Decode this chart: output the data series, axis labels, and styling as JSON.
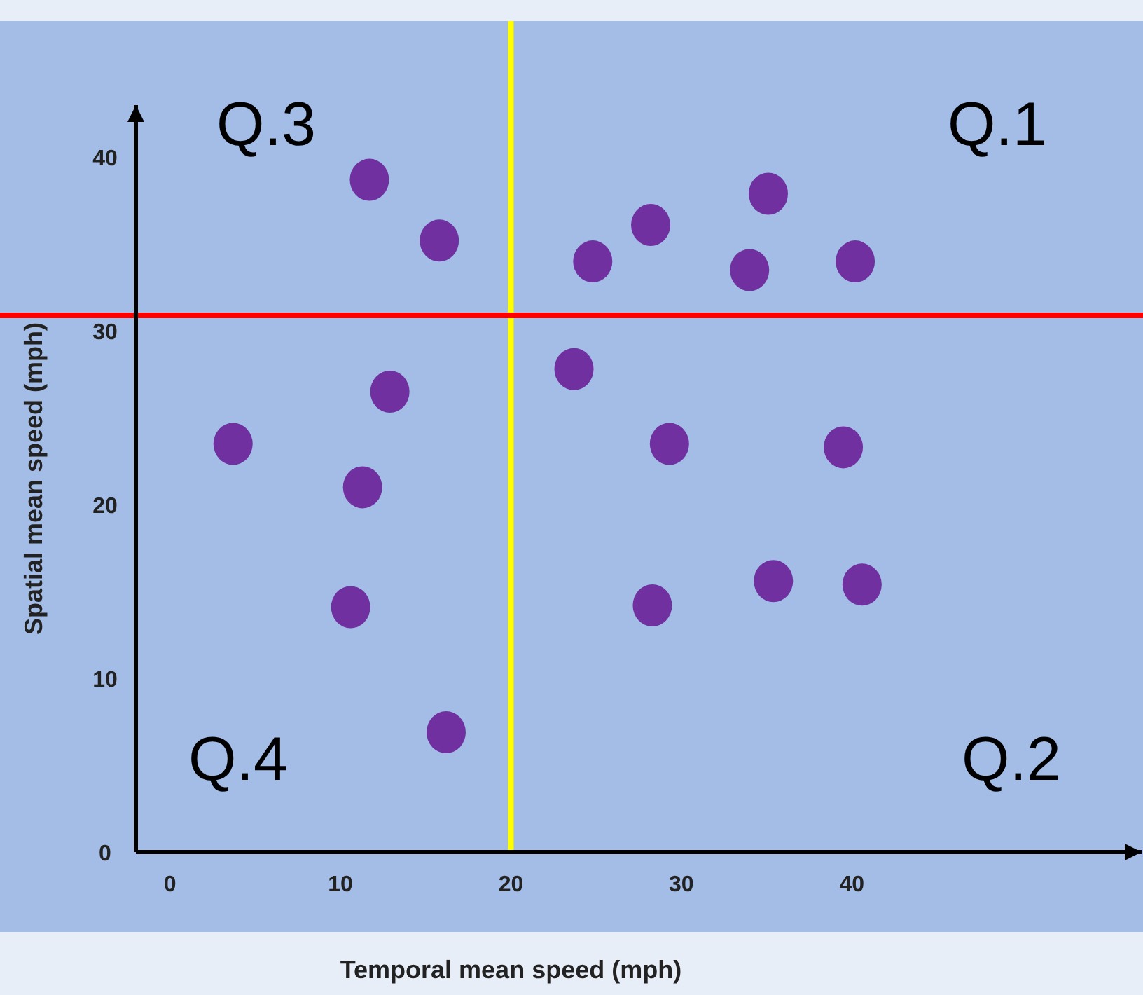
{
  "chart_data": {
    "type": "scatter",
    "xlabel": "Temporal mean speed (mph)",
    "ylabel": "Spatial mean speed (mph)",
    "x": [
      3.7,
      11.7,
      15.8,
      12.9,
      11.3,
      10.6,
      16.2,
      23.7,
      24.8,
      28.2,
      35.1,
      34.0,
      40.2,
      29.3,
      39.5,
      28.3,
      35.4,
      40.6
    ],
    "series": [
      {
        "color": "#7030a0",
        "values": [
          23.5,
          38.7,
          35.2,
          26.5,
          21.0,
          14.1,
          6.9,
          27.8,
          34.0,
          36.1,
          37.9,
          33.5,
          34.0,
          23.5,
          23.3,
          14.2,
          15.6,
          15.4
        ]
      }
    ],
    "marker": "circle",
    "grid": false,
    "xlim": [
      -2,
      57
    ],
    "ylim": [
      0,
      43
    ],
    "xticks": [
      0,
      10,
      20,
      30,
      40
    ],
    "yticks": [
      0,
      10,
      20,
      30,
      40
    ],
    "ref_lines": [
      {
        "axis": "x",
        "value": 20,
        "color": "#ffff00"
      },
      {
        "axis": "y",
        "value": 30.9,
        "color": "#ff0000"
      }
    ],
    "annotations": [
      "Q.3",
      "Q.1",
      "Q.4",
      "Q.2"
    ]
  }
}
